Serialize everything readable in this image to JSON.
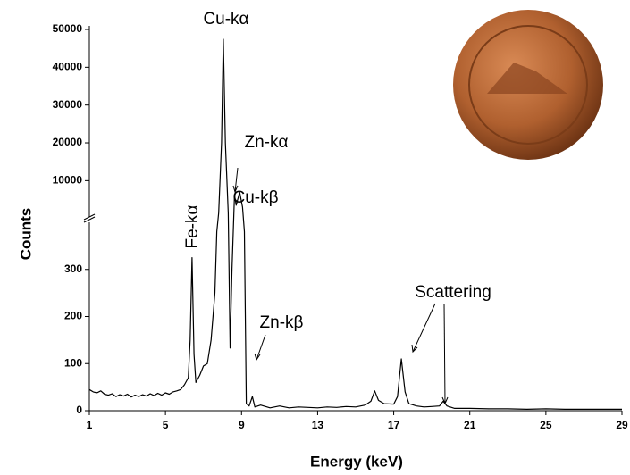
{
  "chart_data": {
    "type": "line",
    "x_label": "Energy (keV)",
    "y_label": "Counts",
    "xlim": [
      1,
      29
    ],
    "xticks": [
      1,
      5,
      9,
      13,
      17,
      21,
      25,
      29
    ],
    "ylim": [
      0,
      400
    ],
    "ylim_upper": [
      3000,
      50000
    ],
    "yticks": [
      0,
      100,
      200,
      300,
      10000,
      20000,
      30000,
      40000,
      50000
    ],
    "y_axis_break": true,
    "color": "#000000",
    "x": [
      1.0,
      1.2,
      1.4,
      1.6,
      1.8,
      2.0,
      2.2,
      2.4,
      2.6,
      2.8,
      3.0,
      3.2,
      3.4,
      3.6,
      3.8,
      4.0,
      4.2,
      4.4,
      4.6,
      4.8,
      5.0,
      5.2,
      5.4,
      5.6,
      5.8,
      6.0,
      6.2,
      6.3,
      6.4,
      6.5,
      6.6,
      6.8,
      7.0,
      7.2,
      7.4,
      7.6,
      7.7,
      7.8,
      7.95,
      8.04,
      8.15,
      8.3,
      8.4,
      8.5,
      8.63,
      8.72,
      8.9,
      9.05,
      9.15,
      9.25,
      9.4,
      9.57,
      9.7,
      10,
      10.5,
      11,
      11.5,
      12,
      12.5,
      13,
      13.5,
      14,
      14.5,
      15,
      15.5,
      15.8,
      16.0,
      16.2,
      16.5,
      17,
      17.2,
      17.4,
      17.6,
      17.8,
      18.2,
      18.6,
      19,
      19.4,
      19.6,
      19.8,
      20.2,
      21,
      22,
      23,
      24,
      25,
      26,
      27,
      28,
      29
    ],
    "values": [
      45,
      40,
      38,
      42,
      35,
      33,
      36,
      30,
      34,
      31,
      35,
      29,
      33,
      30,
      34,
      31,
      36,
      32,
      37,
      33,
      38,
      35,
      40,
      42,
      45,
      55,
      70,
      150,
      325,
      120,
      60,
      75,
      95,
      100,
      150,
      250,
      380,
      2000,
      20000,
      47400,
      20000,
      2000,
      133,
      300,
      6200,
      3500,
      7000,
      3000,
      380,
      15,
      10,
      30,
      8,
      12,
      6,
      10,
      6,
      8,
      7,
      6,
      8,
      7,
      9,
      8,
      12,
      20,
      42,
      22,
      15,
      14,
      30,
      110,
      40,
      15,
      10,
      8,
      9,
      10,
      20,
      10,
      5,
      5,
      4,
      4,
      3,
      4,
      3,
      3,
      3,
      3
    ],
    "annotations": [
      "Cu-kα",
      "Zn-kα",
      "Cu-kβ",
      "Fe-kα",
      "Zn-kβ",
      "Scattering"
    ]
  }
}
